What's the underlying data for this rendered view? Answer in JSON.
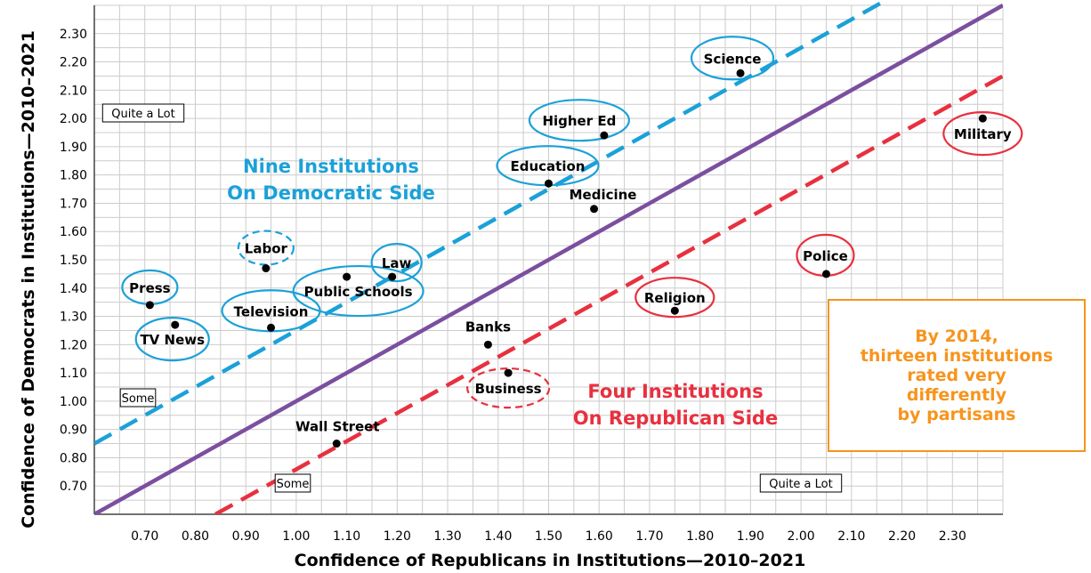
{
  "chart_data": {
    "type": "scatter",
    "title": "",
    "xlabel": "Confidence of Republicans in Institutions—2010–2021",
    "ylabel": "Confidence of Democrats in Institutions—2010–2021",
    "xlim": [
      0.6,
      2.4
    ],
    "ylim": [
      0.6,
      2.4
    ],
    "xticks": [
      "0.70",
      "0.80",
      "0.90",
      "1.00",
      "1.10",
      "1.20",
      "1.30",
      "1.40",
      "1.50",
      "1.60",
      "1.70",
      "1.80",
      "1.90",
      "2.00",
      "2.10",
      "2.20",
      "2.30"
    ],
    "yticks": [
      "0.70",
      "0.80",
      "0.90",
      "1.00",
      "1.10",
      "1.20",
      "1.30",
      "1.40",
      "1.50",
      "1.60",
      "1.70",
      "1.80",
      "1.90",
      "2.00",
      "2.10",
      "2.20",
      "2.30"
    ],
    "grid": true,
    "points": [
      {
        "label": "Science",
        "x": 1.88,
        "y": 2.16,
        "side": "democratic"
      },
      {
        "label": "Higher Ed",
        "x": 1.61,
        "y": 1.94,
        "side": "democratic"
      },
      {
        "label": "Education",
        "x": 1.5,
        "y": 1.77,
        "side": "democratic"
      },
      {
        "label": "Medicine",
        "x": 1.59,
        "y": 1.68,
        "side": "none"
      },
      {
        "label": "Military",
        "x": 2.36,
        "y": 2.0,
        "side": "republican"
      },
      {
        "label": "Labor",
        "x": 0.94,
        "y": 1.47,
        "side": "democratic-dashed"
      },
      {
        "label": "Law",
        "x": 1.19,
        "y": 1.44,
        "side": "democratic"
      },
      {
        "label": "Public Schools",
        "x": 1.1,
        "y": 1.44,
        "side": "democratic"
      },
      {
        "label": "Press",
        "x": 0.71,
        "y": 1.34,
        "side": "democratic"
      },
      {
        "label": "Television",
        "x": 0.95,
        "y": 1.26,
        "side": "democratic"
      },
      {
        "label": "TV News",
        "x": 0.76,
        "y": 1.27,
        "side": "democratic"
      },
      {
        "label": "Police",
        "x": 2.05,
        "y": 1.45,
        "side": "republican"
      },
      {
        "label": "Religion",
        "x": 1.75,
        "y": 1.32,
        "side": "republican"
      },
      {
        "label": "Banks",
        "x": 1.38,
        "y": 1.2,
        "side": "none"
      },
      {
        "label": "Business",
        "x": 1.42,
        "y": 1.1,
        "side": "republican-dashed"
      },
      {
        "label": "Wall Street",
        "x": 1.08,
        "y": 0.85,
        "side": "none"
      }
    ],
    "lines": [
      {
        "name": "",
        "style": "solid",
        "color": "#7b4fa0",
        "from": [
          0.6,
          0.6
        ],
        "to": [
          2.4,
          2.4
        ]
      },
      {
        "name": "",
        "style": "dashed",
        "color": "#1ba1d8",
        "from": [
          0.6,
          0.85
        ],
        "to": [
          2.16,
          2.41
        ]
      },
      {
        "name": "",
        "style": "dashed",
        "color": "#e8303f",
        "from": [
          0.84,
          0.6
        ],
        "to": [
          2.4,
          2.15
        ]
      }
    ],
    "annotations": {
      "democratic_side": [
        "Nine Institutions",
        "On Democratic Side"
      ],
      "republican_side": [
        "Four Institutions",
        "On Republican Side"
      ],
      "y_quite_a_lot": "Quite a Lot",
      "y_some": "Some",
      "x_some": "Some",
      "x_quite_a_lot": "Quite a Lot",
      "callout": [
        "By 2014,",
        "thirteen institutions",
        "rated very",
        "differently",
        "by partisans"
      ]
    },
    "colors": {
      "democratic": "#1ba1d8",
      "republican": "#e8303f",
      "diagonal": "#7b4fa0",
      "callout": "#f7941d",
      "grid": "#cccccc"
    }
  }
}
